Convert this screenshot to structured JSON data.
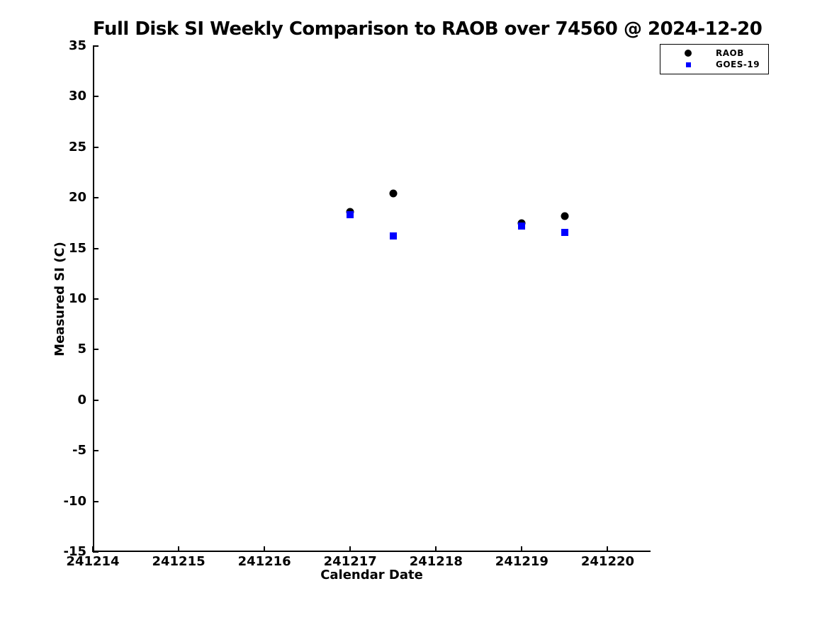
{
  "figure": {
    "background_color": "#ffffff",
    "text_color": "#000000"
  },
  "chart_data": {
    "type": "scatter",
    "title": "Full Disk SI Weekly Comparison to RAOB over 74560 @ 2024-12-20",
    "xlabel": "Calendar Date",
    "ylabel": "Measured SI (C)",
    "xlim": [
      241214,
      241220.5
    ],
    "ylim": [
      -15,
      35
    ],
    "xticks": [
      241214,
      241215,
      241216,
      241217,
      241218,
      241219,
      241220
    ],
    "yticks": [
      35,
      30,
      25,
      20,
      15,
      10,
      5,
      0,
      -5,
      -10,
      -15
    ],
    "grid": false,
    "legend": {
      "position": "top-right",
      "border_color": "#000000"
    },
    "series": [
      {
        "name": "RAOB",
        "marker": "circle",
        "color": "#000000",
        "x": [
          241217.0,
          241217.5,
          241219.0,
          241219.5
        ],
        "y": [
          18.6,
          20.4,
          17.5,
          18.2
        ]
      },
      {
        "name": "GOES-19",
        "marker": "square",
        "color": "#0000ff",
        "x": [
          241217.0,
          241217.5,
          241219.0,
          241219.5
        ],
        "y": [
          18.3,
          16.2,
          17.2,
          16.6
        ]
      }
    ]
  }
}
